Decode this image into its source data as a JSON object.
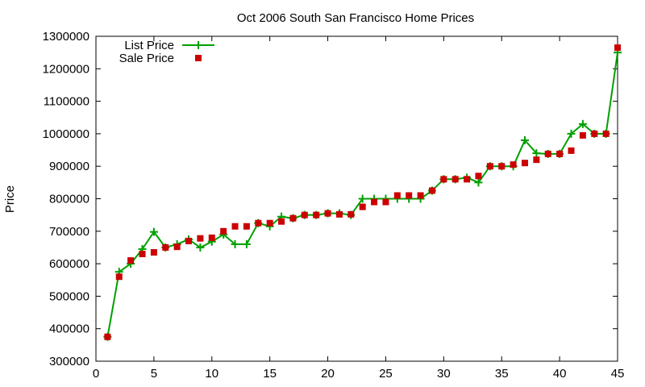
{
  "chart_data": {
    "type": "line",
    "title": "Oct 2006 South San Francisco Home Prices",
    "xlabel": "",
    "ylabel": "Price",
    "xlim": [
      0,
      45
    ],
    "ylim": [
      300000,
      1300000
    ],
    "xticks": [
      0,
      5,
      10,
      15,
      20,
      25,
      30,
      35,
      40,
      45
    ],
    "yticks": [
      300000,
      400000,
      500000,
      600000,
      700000,
      800000,
      900000,
      1000000,
      1100000,
      1200000,
      1300000
    ],
    "grid": false,
    "legend_position": "top-left",
    "series": [
      {
        "name": "List Price",
        "style": "line-with-plus-markers",
        "color": "#00a000",
        "x": [
          1,
          2,
          3,
          4,
          5,
          6,
          7,
          8,
          9,
          10,
          11,
          12,
          13,
          14,
          15,
          16,
          17,
          18,
          19,
          20,
          21,
          22,
          23,
          24,
          25,
          26,
          27,
          28,
          29,
          30,
          31,
          32,
          33,
          34,
          35,
          36,
          37,
          38,
          39,
          40,
          41,
          42,
          43,
          44,
          45
        ],
        "y": [
          375000,
          575000,
          600000,
          645000,
          698000,
          650000,
          660000,
          675000,
          650000,
          668000,
          690000,
          660000,
          660000,
          725000,
          715000,
          745000,
          740000,
          750000,
          750000,
          755000,
          755000,
          750000,
          800000,
          800000,
          800000,
          800000,
          800000,
          800000,
          825000,
          860000,
          860000,
          865000,
          850000,
          900000,
          900000,
          900000,
          980000,
          940000,
          938000,
          938000,
          1000000,
          1030000,
          1000000,
          1000000,
          1250000
        ]
      },
      {
        "name": "Sale Price",
        "style": "square-markers",
        "color": "#cc0000",
        "x": [
          1,
          2,
          3,
          4,
          5,
          6,
          7,
          8,
          9,
          10,
          11,
          12,
          13,
          14,
          15,
          16,
          17,
          18,
          19,
          20,
          21,
          22,
          23,
          24,
          25,
          26,
          27,
          28,
          29,
          30,
          31,
          32,
          33,
          34,
          35,
          36,
          37,
          38,
          39,
          40,
          41,
          42,
          43,
          44,
          45
        ],
        "y": [
          375000,
          560000,
          610000,
          630000,
          635000,
          650000,
          652000,
          670000,
          678000,
          680000,
          700000,
          715000,
          715000,
          725000,
          725000,
          730000,
          740000,
          750000,
          750000,
          755000,
          752000,
          752000,
          775000,
          790000,
          790000,
          810000,
          810000,
          810000,
          825000,
          860000,
          860000,
          860000,
          870000,
          900000,
          900000,
          905000,
          910000,
          920000,
          938000,
          938000,
          948000,
          995000,
          1000000,
          1000000,
          1265000
        ]
      }
    ]
  }
}
